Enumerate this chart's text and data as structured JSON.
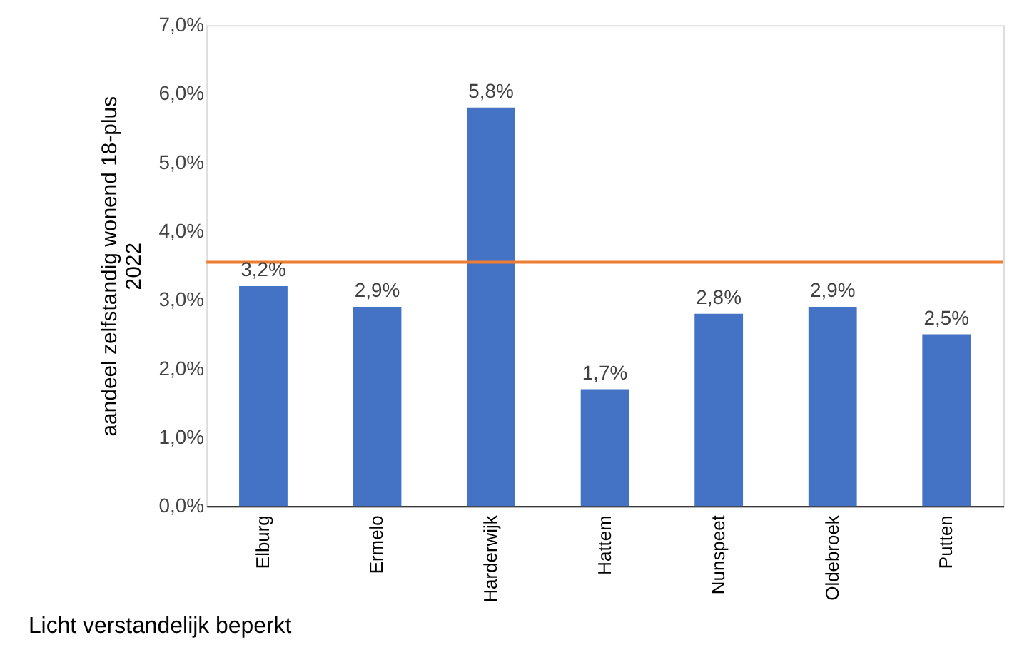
{
  "chart_data": {
    "type": "bar",
    "ylabel": "aandeel zelfstandig wonend 18-plus 2022",
    "categories": [
      "Elburg",
      "Ermelo",
      "Harderwijk",
      "Hattem",
      "Nunspeet",
      "Oldebroek",
      "Putten"
    ],
    "values": [
      3.2,
      2.9,
      5.8,
      1.7,
      2.8,
      2.9,
      2.5
    ],
    "value_labels": [
      "3,2%",
      "2,9%",
      "5,8%",
      "1,7%",
      "2,8%",
      "2,9%",
      "2,5%"
    ],
    "color": "#4472c4",
    "ylim": [
      0,
      7
    ],
    "yticks": [
      {
        "value": 0,
        "label": "0,0%"
      },
      {
        "value": 1,
        "label": "1,0%"
      },
      {
        "value": 2,
        "label": "2,0%"
      },
      {
        "value": 3,
        "label": "3,0%"
      },
      {
        "value": 4,
        "label": "4,0%"
      },
      {
        "value": 5,
        "label": "5,0%"
      },
      {
        "value": 6,
        "label": "6,0%"
      },
      {
        "value": 7,
        "label": "7,0%"
      }
    ],
    "ref_lines": [
      {
        "axis": "y",
        "value": 3.55,
        "color": "#ed7d31"
      }
    ],
    "annotations": [
      "Licht verstandelijk beperkt"
    ],
    "grid": false
  }
}
